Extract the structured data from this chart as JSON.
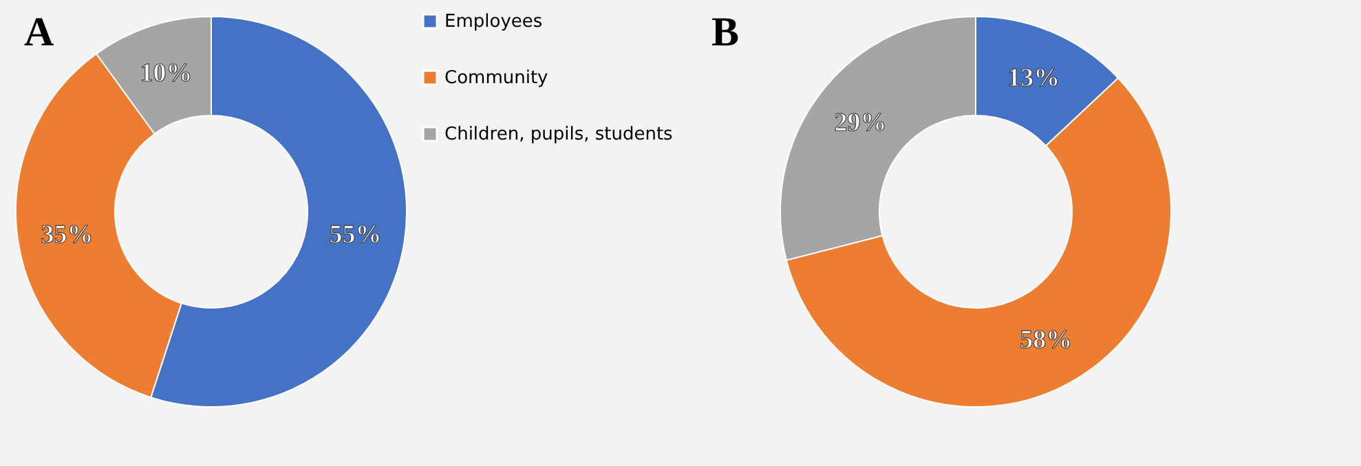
{
  "chart_data": [
    {
      "type": "donut",
      "title": "A",
      "categories": [
        "Employees",
        "Community",
        "Children, pupils, students"
      ],
      "values": [
        55,
        35,
        10
      ],
      "colors": [
        "#4472c4",
        "#ed7d31",
        "#a5a5a5"
      ],
      "value_labels": [
        "55%",
        "35%",
        "10%"
      ],
      "legend": "right"
    },
    {
      "type": "donut",
      "title": "B",
      "categories": [
        null,
        null,
        null
      ],
      "values": [
        13,
        58,
        29
      ],
      "colors": [
        "#4472c4",
        "#ed7d31",
        "#a5a5a5"
      ],
      "value_labels": [
        "13%",
        "58%",
        "29%"
      ],
      "legend": false
    }
  ]
}
